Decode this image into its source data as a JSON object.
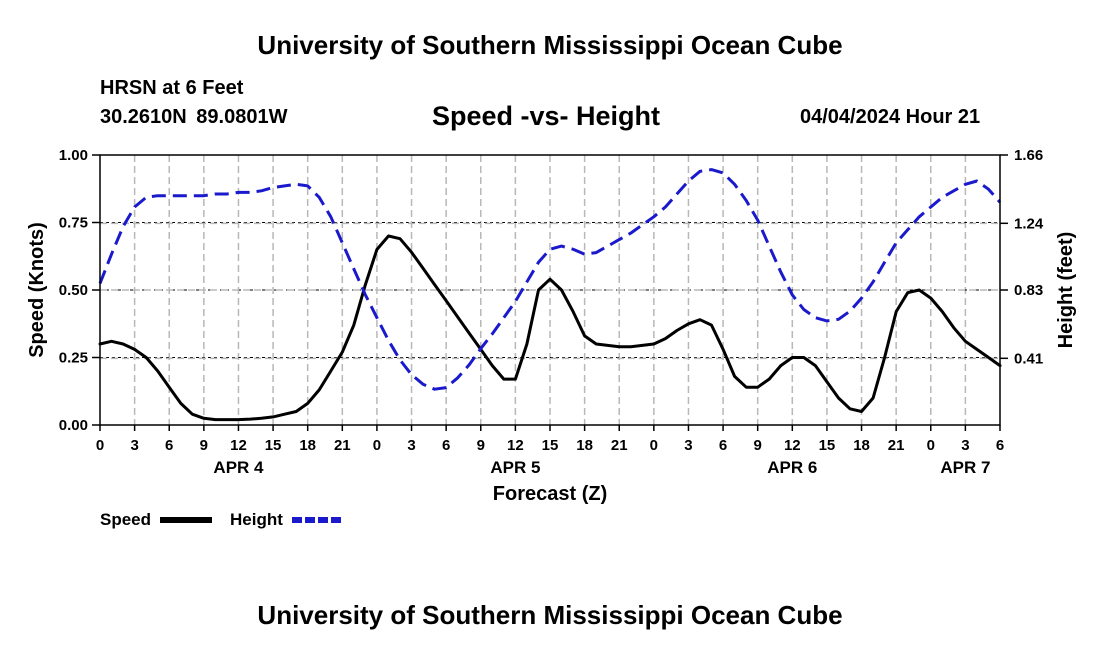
{
  "header": {
    "title_top": "University of Southern Mississippi Ocean Cube",
    "title_bottom": "University of Southern Mississippi Ocean Cube",
    "station": "HRSN at 6 Feet",
    "coords": "30.2610N  89.0801W",
    "subtitle": "Speed -vs- Height",
    "timestamp": "04/04/2024 Hour 21"
  },
  "colors": {
    "speed": "#000000",
    "height": "#1a1acc",
    "grid": "#b8b8b8"
  },
  "chart_data": {
    "type": "line",
    "title": "Speed -vs- Height",
    "xlabel": "Forecast (Z)",
    "ylabel": "Speed (Knots)",
    "y2label": "Height (feet)",
    "xlim": [
      0,
      78
    ],
    "ylim": [
      0,
      1
    ],
    "y2lim": [
      0,
      1.66
    ],
    "x_tick_labels": [
      "0",
      "3",
      "6",
      "9",
      "12",
      "15",
      "18",
      "21",
      "0",
      "3",
      "6",
      "9",
      "12",
      "15",
      "18",
      "21",
      "0",
      "3",
      "6",
      "9",
      "12",
      "15",
      "18",
      "21",
      "0",
      "3",
      "6"
    ],
    "y_tick_labels": [
      "0.00",
      "0.25",
      "0.50",
      "0.75",
      "1.00"
    ],
    "y2_tick_labels": [
      "0.41",
      "0.83",
      "1.24",
      "1.66"
    ],
    "y2_tick_values": [
      0.41,
      0.83,
      1.24,
      1.66
    ],
    "day_labels": [
      {
        "label": "APR 4",
        "x": 12
      },
      {
        "label": "APR 5",
        "x": 36
      },
      {
        "label": "APR 6",
        "x": 60
      },
      {
        "label": "APR 7",
        "x": 75
      }
    ],
    "series": [
      {
        "name": "Speed",
        "axis": "left",
        "style": "solid",
        "x": [
          0,
          1,
          2,
          3,
          4,
          5,
          6,
          7,
          8,
          9,
          10,
          11,
          12,
          13,
          14,
          15,
          16,
          17,
          18,
          19,
          20,
          21,
          22,
          23,
          24,
          25,
          26,
          27,
          28,
          29,
          30,
          31,
          32,
          33,
          34,
          35,
          36,
          37,
          38,
          39,
          40,
          41,
          42,
          43,
          44,
          45,
          46,
          47,
          48,
          49,
          50,
          51,
          52,
          53,
          54,
          55,
          56,
          57,
          58,
          59,
          60,
          61,
          62,
          63,
          64,
          65,
          66,
          67,
          68,
          69,
          70,
          71,
          72,
          73,
          74,
          75,
          76,
          77,
          78
        ],
        "values": [
          0.3,
          0.31,
          0.3,
          0.28,
          0.25,
          0.2,
          0.14,
          0.08,
          0.04,
          0.025,
          0.02,
          0.02,
          0.02,
          0.022,
          0.025,
          0.03,
          0.04,
          0.05,
          0.08,
          0.13,
          0.2,
          0.27,
          0.37,
          0.52,
          0.65,
          0.7,
          0.69,
          0.64,
          0.58,
          0.52,
          0.46,
          0.4,
          0.34,
          0.28,
          0.22,
          0.17,
          0.17,
          0.3,
          0.5,
          0.54,
          0.5,
          0.42,
          0.33,
          0.3,
          0.295,
          0.29,
          0.29,
          0.295,
          0.3,
          0.32,
          0.35,
          0.375,
          0.39,
          0.37,
          0.28,
          0.18,
          0.14,
          0.14,
          0.17,
          0.22,
          0.25,
          0.25,
          0.22,
          0.16,
          0.1,
          0.06,
          0.05,
          0.1,
          0.25,
          0.42,
          0.49,
          0.5,
          0.47,
          0.42,
          0.36,
          0.31,
          0.28,
          0.25,
          0.22
        ]
      },
      {
        "name": "Height",
        "axis": "right",
        "style": "dashed",
        "x": [
          0,
          1,
          2,
          3,
          4,
          5,
          6,
          7,
          8,
          9,
          10,
          11,
          12,
          13,
          14,
          15,
          16,
          17,
          18,
          19,
          20,
          21,
          22,
          23,
          24,
          25,
          26,
          27,
          28,
          29,
          30,
          31,
          32,
          33,
          34,
          35,
          36,
          37,
          38,
          39,
          40,
          41,
          42,
          43,
          44,
          45,
          46,
          47,
          48,
          49,
          50,
          51,
          52,
          53,
          54,
          55,
          56,
          57,
          58,
          59,
          60,
          61,
          62,
          63,
          64,
          65,
          66,
          67,
          68,
          69,
          70,
          71,
          72,
          73,
          74,
          75,
          76,
          77,
          78
        ],
        "values": [
          0.87,
          1.05,
          1.22,
          1.34,
          1.4,
          1.41,
          1.41,
          1.41,
          1.41,
          1.41,
          1.42,
          1.42,
          1.43,
          1.43,
          1.44,
          1.46,
          1.47,
          1.48,
          1.47,
          1.4,
          1.28,
          1.12,
          0.96,
          0.8,
          0.66,
          0.52,
          0.4,
          0.31,
          0.25,
          0.22,
          0.23,
          0.29,
          0.37,
          0.47,
          0.56,
          0.66,
          0.76,
          0.88,
          1.0,
          1.08,
          1.1,
          1.08,
          1.05,
          1.06,
          1.1,
          1.14,
          1.18,
          1.23,
          1.28,
          1.34,
          1.42,
          1.5,
          1.56,
          1.57,
          1.55,
          1.48,
          1.38,
          1.26,
          1.1,
          0.94,
          0.8,
          0.71,
          0.66,
          0.64,
          0.65,
          0.7,
          0.78,
          0.88,
          1.0,
          1.12,
          1.2,
          1.28,
          1.34,
          1.4,
          1.44,
          1.48,
          1.5,
          1.45,
          1.37
        ]
      }
    ],
    "legend": [
      {
        "label": "Speed",
        "style": "solid",
        "color": "#000000"
      },
      {
        "label": "Height",
        "style": "dashed",
        "color": "#1a1acc"
      }
    ],
    "legend_position": "bottom-left"
  }
}
